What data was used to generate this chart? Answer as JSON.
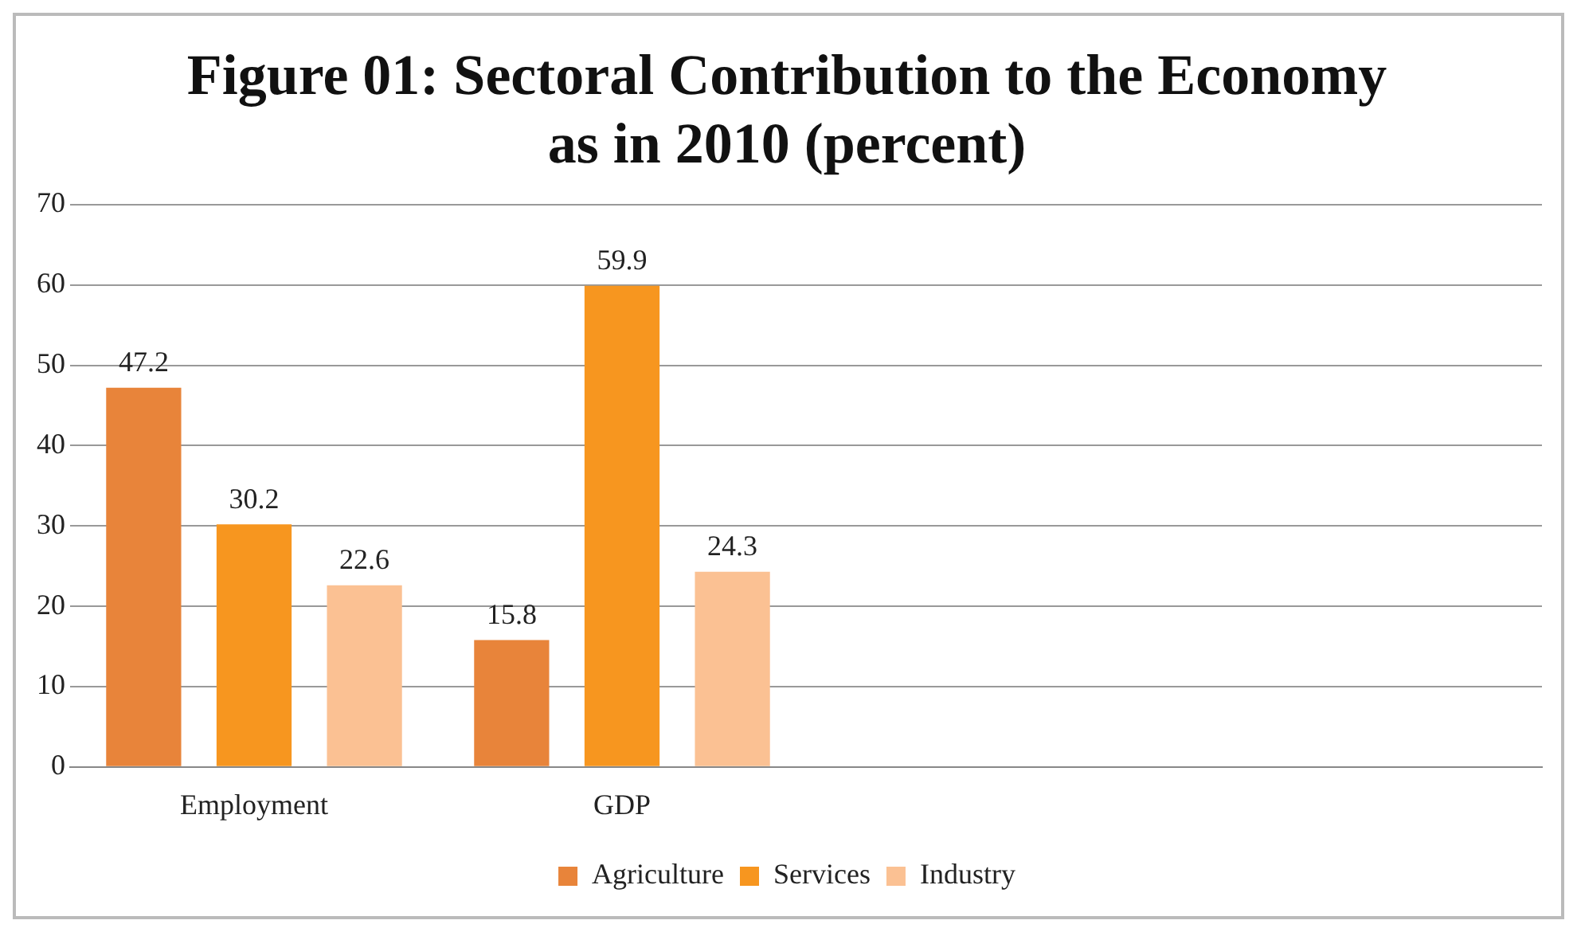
{
  "chart_data": {
    "type": "bar",
    "title": "Figure 01: Sectoral Contribution to the Economy as in 2010 (percent)",
    "categories": [
      "Employment",
      "GDP",
      null,
      null
    ],
    "series": [
      {
        "name": "Agriculture",
        "color": "#e8843a",
        "values": [
          47.2,
          15.8,
          null,
          null
        ]
      },
      {
        "name": "Services",
        "color": "#f7961f",
        "values": [
          30.2,
          59.9,
          null,
          null
        ]
      },
      {
        "name": "Industry",
        "color": "#fbc193",
        "values": [
          22.6,
          24.3,
          null,
          null
        ]
      }
    ],
    "ylim": [
      0,
      70
    ],
    "yticks": [
      0,
      10,
      20,
      30,
      40,
      50,
      60,
      70
    ],
    "grid": "y",
    "legend": "bottom",
    "data_labels": true
  }
}
